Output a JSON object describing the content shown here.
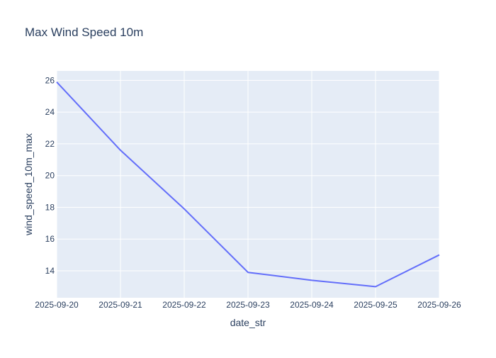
{
  "chart_data": {
    "type": "line",
    "title": "Max Wind Speed 10m",
    "xlabel": "date_str",
    "ylabel": "wind_speed_10m_max",
    "x": [
      "2025-09-20",
      "2025-09-21",
      "2025-09-22",
      "2025-09-23",
      "2025-09-24",
      "2025-09-25",
      "2025-09-26"
    ],
    "series": [
      {
        "values": [
          25.9,
          21.6,
          17.9,
          13.9,
          13.4,
          13.0,
          15.0
        ]
      }
    ],
    "ylim": [
      12.3,
      26.6
    ],
    "yticks": [
      14,
      16,
      18,
      20,
      22,
      24,
      26
    ],
    "grid": true,
    "legend": "none",
    "colors": {
      "line": "#636efa",
      "plot_bg": "#e5ecf6",
      "grid": "#ffffff",
      "text": "#2a3f5f",
      "tick_text": "#2a3f5f"
    }
  }
}
